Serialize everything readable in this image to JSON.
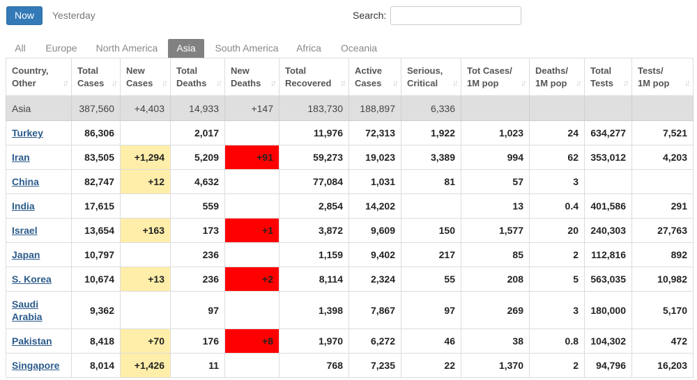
{
  "toolbar": {
    "now_label": "Now",
    "yesterday_label": "Yesterday",
    "search_label": "Search:",
    "search_value": ""
  },
  "tabs": [
    {
      "label": "All",
      "active": false
    },
    {
      "label": "Europe",
      "active": false
    },
    {
      "label": "North America",
      "active": false
    },
    {
      "label": "Asia",
      "active": true
    },
    {
      "label": "South America",
      "active": false
    },
    {
      "label": "Africa",
      "active": false
    },
    {
      "label": "Oceania",
      "active": false
    }
  ],
  "table": {
    "headers": [
      {
        "line1": "Country,",
        "line2": "Other"
      },
      {
        "line1": "Total",
        "line2": "Cases"
      },
      {
        "line1": "New",
        "line2": "Cases"
      },
      {
        "line1": "Total",
        "line2": "Deaths"
      },
      {
        "line1": "New",
        "line2": "Deaths"
      },
      {
        "line1": "Total",
        "line2": "Recovered"
      },
      {
        "line1": "Active",
        "line2": "Cases"
      },
      {
        "line1": "Serious,",
        "line2": "Critical"
      },
      {
        "line1": "Tot Cases/",
        "line2": "1M pop"
      },
      {
        "line1": "Deaths/",
        "line2": "1M pop"
      },
      {
        "line1": "Total",
        "line2": "Tests"
      },
      {
        "line1": "Tests/",
        "line2": "1M pop"
      }
    ],
    "region_row": [
      "Asia",
      "387,560",
      "+4,403",
      "14,933",
      "+147",
      "183,730",
      "188,897",
      "6,336",
      "",
      "",
      "",
      ""
    ],
    "rows": [
      [
        "Turkey",
        "86,306",
        "",
        "2,017",
        "",
        "11,976",
        "72,313",
        "1,922",
        "1,023",
        "24",
        "634,277",
        "7,521"
      ],
      [
        "Iran",
        "83,505",
        "+1,294",
        "5,209",
        "+91",
        "59,273",
        "19,023",
        "3,389",
        "994",
        "62",
        "353,012",
        "4,203"
      ],
      [
        "China",
        "82,747",
        "+12",
        "4,632",
        "",
        "77,084",
        "1,031",
        "81",
        "57",
        "3",
        "",
        ""
      ],
      [
        "India",
        "17,615",
        "",
        "559",
        "",
        "2,854",
        "14,202",
        "",
        "13",
        "0.4",
        "401,586",
        "291"
      ],
      [
        "Israel",
        "13,654",
        "+163",
        "173",
        "+1",
        "3,872",
        "9,609",
        "150",
        "1,577",
        "20",
        "240,303",
        "27,763"
      ],
      [
        "Japan",
        "10,797",
        "",
        "236",
        "",
        "1,159",
        "9,402",
        "217",
        "85",
        "2",
        "112,816",
        "892"
      ],
      [
        "S. Korea",
        "10,674",
        "+13",
        "236",
        "+2",
        "8,114",
        "2,324",
        "55",
        "208",
        "5",
        "563,035",
        "10,982"
      ],
      [
        "Saudi Arabia",
        "9,362",
        "",
        "97",
        "",
        "1,398",
        "7,867",
        "97",
        "269",
        "3",
        "180,000",
        "5,170"
      ],
      [
        "Pakistan",
        "8,418",
        "+70",
        "176",
        "+8",
        "1,970",
        "6,272",
        "46",
        "38",
        "0.8",
        "104,302",
        "472"
      ],
      [
        "Singapore",
        "8,014",
        "+1,426",
        "11",
        "",
        "768",
        "7,235",
        "22",
        "1,370",
        "2",
        "94,796",
        "16,203"
      ]
    ]
  },
  "colors": {
    "accent": "#337ab7",
    "new_cases_bg": "#ffeeaa",
    "new_deaths_bg": "#ff0000",
    "link": "#2b5b8b",
    "active_tab": "#818181"
  }
}
